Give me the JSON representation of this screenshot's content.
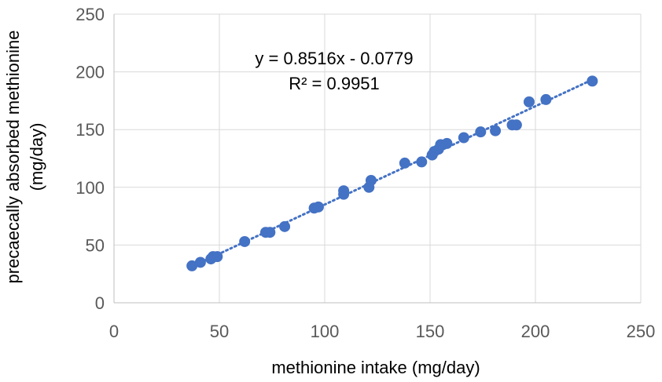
{
  "chart_data": {
    "type": "scatter",
    "title": "",
    "xlabel": "methionine intake (mg/day)",
    "ylabel_line1": "precaecally absorbed methionine",
    "ylabel_line2": "(mg/day)",
    "xlim": [
      0,
      250
    ],
    "ylim": [
      0,
      250
    ],
    "x_ticks": [
      "0",
      "50",
      "100",
      "150",
      "200",
      "250"
    ],
    "y_ticks": [
      "0",
      "50",
      "100",
      "150",
      "200",
      "250"
    ],
    "grid": "both",
    "legend": "none",
    "marker_color": "#4472C4",
    "trendline": {
      "type": "linear",
      "slope": 0.8516,
      "intercept": -0.0779,
      "style": "dotted",
      "equation_label": "y = 0.8516x - 0.0779",
      "r2_label": "R² = 0.9951"
    },
    "points": [
      {
        "x": 37,
        "y": 32
      },
      {
        "x": 41,
        "y": 35
      },
      {
        "x": 46,
        "y": 38
      },
      {
        "x": 47,
        "y": 40
      },
      {
        "x": 49,
        "y": 40
      },
      {
        "x": 62,
        "y": 53
      },
      {
        "x": 72,
        "y": 61
      },
      {
        "x": 74,
        "y": 61
      },
      {
        "x": 81,
        "y": 66
      },
      {
        "x": 95,
        "y": 82
      },
      {
        "x": 97,
        "y": 83
      },
      {
        "x": 109,
        "y": 94
      },
      {
        "x": 109,
        "y": 97
      },
      {
        "x": 121,
        "y": 100
      },
      {
        "x": 122,
        "y": 106
      },
      {
        "x": 138,
        "y": 121
      },
      {
        "x": 146,
        "y": 122
      },
      {
        "x": 151,
        "y": 128
      },
      {
        "x": 152,
        "y": 131
      },
      {
        "x": 154,
        "y": 133
      },
      {
        "x": 155,
        "y": 137
      },
      {
        "x": 158,
        "y": 138
      },
      {
        "x": 166,
        "y": 143
      },
      {
        "x": 174,
        "y": 148
      },
      {
        "x": 181,
        "y": 149
      },
      {
        "x": 189,
        "y": 154
      },
      {
        "x": 191,
        "y": 154
      },
      {
        "x": 197,
        "y": 174
      },
      {
        "x": 205,
        "y": 176
      },
      {
        "x": 227,
        "y": 192
      }
    ]
  }
}
